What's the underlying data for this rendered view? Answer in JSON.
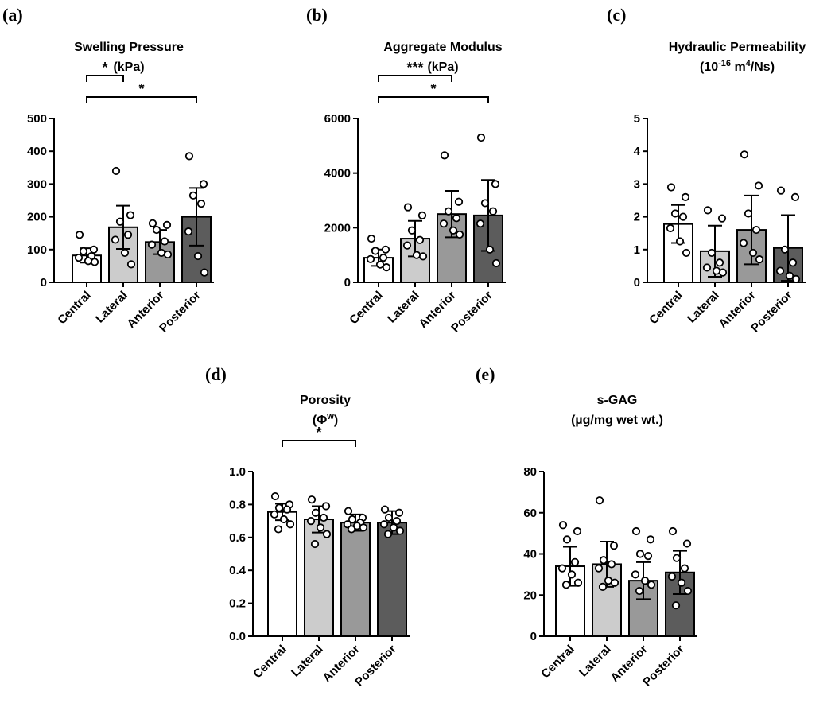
{
  "chart_data": [
    {
      "panel": "(a)",
      "type": "bar",
      "title": [
        "Swelling Pressure",
        "(kPa)"
      ],
      "categories": [
        "Central",
        "Lateral",
        "Anterior",
        "Posterior"
      ],
      "yticks": [
        "0",
        "100",
        "200",
        "300",
        "400",
        "500"
      ],
      "ylim": [
        0,
        500
      ],
      "values": [
        82,
        168,
        123,
        200
      ],
      "sd": [
        22,
        66,
        37,
        88
      ],
      "points": [
        [
          145,
          100,
          95,
          80,
          75,
          65,
          62
        ],
        [
          340,
          205,
          185,
          145,
          130,
          90,
          55
        ],
        [
          180,
          175,
          160,
          125,
          115,
          90,
          85
        ],
        [
          385,
          300,
          265,
          240,
          155,
          80,
          30
        ]
      ],
      "brackets": [
        {
          "from": 0,
          "to": 1,
          "label": "*"
        },
        {
          "from": 0,
          "to": 3,
          "label": "*"
        }
      ],
      "fills": [
        "#ffffff",
        "#cccccc",
        "#999999",
        "#5c5c5c"
      ]
    },
    {
      "panel": "(b)",
      "type": "bar",
      "title": [
        "Aggregate Modulus",
        "(kPa)"
      ],
      "categories": [
        "Central",
        "Lateral",
        "Anterior",
        "Posterior"
      ],
      "yticks": [
        "0",
        "2000",
        "4000",
        "6000"
      ],
      "ylim": [
        0,
        6000
      ],
      "values": [
        900,
        1600,
        2500,
        2450
      ],
      "sd": [
        300,
        650,
        850,
        1300
      ],
      "points": [
        [
          1600,
          1200,
          1150,
          900,
          850,
          650,
          550
        ],
        [
          2750,
          2450,
          1900,
          1550,
          1350,
          1000,
          950
        ],
        [
          4650,
          2950,
          2600,
          2350,
          2150,
          1900,
          1750
        ],
        [
          5300,
          3600,
          2900,
          2600,
          2150,
          1200,
          700
        ]
      ],
      "brackets": [
        {
          "from": 0,
          "to": 2,
          "label": "***"
        },
        {
          "from": 0,
          "to": 3,
          "label": "*"
        }
      ],
      "fills": [
        "#ffffff",
        "#cccccc",
        "#999999",
        "#5c5c5c"
      ]
    },
    {
      "panel": "(c)",
      "type": "bar",
      "title": [
        "Hydraulic Permeability",
        "(10-16 m4/Ns)"
      ],
      "title_parts": {
        "base": "(10",
        "exp1": "-16",
        "mid": " m",
        "exp2": "4",
        "end": "/Ns)"
      },
      "categories": [
        "Central",
        "Lateral",
        "Anterior",
        "Posterior"
      ],
      "yticks": [
        "0",
        "1",
        "2",
        "3",
        "4",
        "5"
      ],
      "ylim": [
        0,
        5
      ],
      "values": [
        1.78,
        0.95,
        1.6,
        1.05
      ],
      "sd": [
        0.58,
        0.78,
        1.05,
        1.0
      ],
      "points": [
        [
          2.9,
          2.6,
          2.1,
          2.0,
          1.65,
          1.25,
          0.9
        ],
        [
          2.2,
          1.95,
          0.9,
          0.6,
          0.45,
          0.35,
          0.3
        ],
        [
          3.9,
          2.95,
          2.1,
          1.6,
          1.2,
          0.9,
          0.7
        ],
        [
          2.8,
          2.6,
          1.0,
          0.6,
          0.35,
          0.2,
          0.1
        ]
      ],
      "brackets": [],
      "fills": [
        "#ffffff",
        "#cccccc",
        "#999999",
        "#5c5c5c"
      ]
    },
    {
      "panel": "(d)",
      "type": "bar",
      "title": [
        "Porosity",
        "(ΦW)"
      ],
      "title_parts": {
        "base": "(Φ",
        "exp1": "w",
        "end": ")"
      },
      "categories": [
        "Central",
        "Lateral",
        "Anterior",
        "Posterior"
      ],
      "yticks": [
        "0.0",
        "0.2",
        "0.4",
        "0.6",
        "0.8",
        "1.0"
      ],
      "ylim": [
        0,
        1.0
      ],
      "values": [
        0.755,
        0.71,
        0.69,
        0.69
      ],
      "sd": [
        0.05,
        0.08,
        0.05,
        0.07
      ],
      "points": [
        [
          0.85,
          0.8,
          0.78,
          0.77,
          0.74,
          0.71,
          0.68,
          0.65
        ],
        [
          0.83,
          0.79,
          0.75,
          0.72,
          0.7,
          0.66,
          0.62,
          0.56
        ],
        [
          0.76,
          0.72,
          0.71,
          0.69,
          0.68,
          0.67,
          0.66,
          0.65
        ],
        [
          0.77,
          0.75,
          0.72,
          0.7,
          0.68,
          0.66,
          0.64,
          0.62
        ]
      ],
      "brackets": [
        {
          "from": 0,
          "to": 2,
          "label": "*"
        }
      ],
      "fills": [
        "#ffffff",
        "#cccccc",
        "#999999",
        "#5c5c5c"
      ]
    },
    {
      "panel": "(e)",
      "type": "bar",
      "title": [
        "s-GAG",
        "(µg/mg wet wt.)"
      ],
      "categories": [
        "Central",
        "Lateral",
        "Anterior",
        "Posterior"
      ],
      "yticks": [
        "0",
        "20",
        "40",
        "60",
        "80"
      ],
      "ylim": [
        0,
        80
      ],
      "values": [
        34,
        35,
        27,
        31
      ],
      "sd": [
        9.5,
        11,
        9,
        10.5
      ],
      "points": [
        [
          54,
          51,
          47,
          36,
          33,
          30,
          26,
          25
        ],
        [
          66,
          44,
          37,
          35,
          33,
          27,
          26,
          24
        ],
        [
          51,
          47,
          40,
          39,
          30,
          27,
          25,
          22
        ],
        [
          51,
          45,
          38,
          33,
          29,
          26,
          22,
          15
        ]
      ],
      "brackets": [],
      "fills": [
        "#ffffff",
        "#cccccc",
        "#999999",
        "#5c5c5c"
      ]
    }
  ]
}
